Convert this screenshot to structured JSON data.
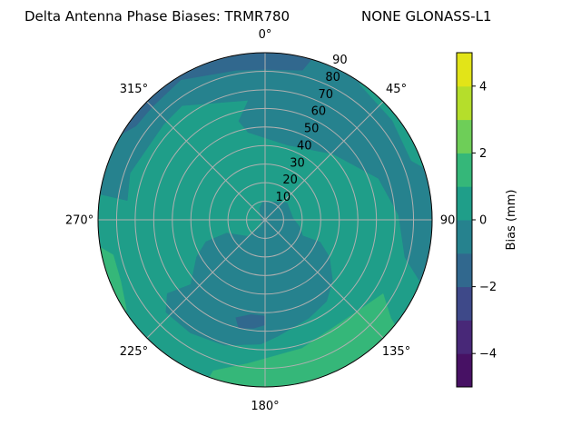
{
  "chart_data": {
    "type": "polar-contour",
    "title_left": "Delta Antenna Phase Biases: TRMR780",
    "title_right": "NONE GLONASS-L1",
    "azimuth_direction": "clockwise, 0° at top",
    "azimuth_ticks": [
      "0°",
      "45°",
      "90°",
      "135°",
      "180°",
      "225°",
      "270°",
      "315°"
    ],
    "radial_ticks": [
      "10",
      "20",
      "30",
      "40",
      "50",
      "60",
      "70",
      "80",
      "90"
    ],
    "radial_range": [
      0,
      90
    ],
    "grid": true,
    "grid_color": "#b0b0b0",
    "colorbar": {
      "label": "Bias (mm)",
      "range": [
        -5,
        5
      ],
      "levels": [
        -5,
        -4,
        -3,
        -2,
        -1,
        0,
        1,
        2,
        3,
        4,
        5
      ],
      "colors": [
        "#471164",
        "#482878",
        "#3e4989",
        "#31688e",
        "#26828e",
        "#1f9e89",
        "#35b779",
        "#6ece58",
        "#b5de2b",
        "#e2e418"
      ],
      "ticks": [
        "4",
        "2",
        "0",
        "−2",
        "−4"
      ],
      "tick_values": [
        4,
        2,
        0,
        -2,
        -4
      ]
    },
    "background_level": [
      0,
      1
    ],
    "regions": [
      {
        "name": "north-east band",
        "range": [
          -1,
          0
        ],
        "points": [
          [
            114,
            95
          ],
          [
            90,
            95
          ],
          [
            60,
            95
          ],
          [
            30,
            95
          ],
          [
            0,
            95
          ],
          [
            330,
            95
          ],
          [
            300,
            95
          ],
          [
            279,
            95
          ],
          [
            278,
            75
          ],
          [
            289,
            77
          ],
          [
            313,
            75
          ],
          [
            324,
            76
          ],
          [
            352,
            65
          ],
          [
            345,
            55
          ],
          [
            349,
            48
          ],
          [
            16.5,
            42
          ],
          [
            46,
            51
          ],
          [
            70,
            65
          ],
          [
            88,
            72
          ],
          [
            105,
            78
          ]
        ]
      },
      {
        "name": "north-east rim strip",
        "range": [
          0,
          1
        ],
        "points": [
          [
            33,
            95
          ],
          [
            50,
            95
          ],
          [
            75,
            95
          ],
          [
            68,
            85
          ],
          [
            52,
            87
          ],
          [
            35,
            89
          ]
        ]
      },
      {
        "name": "north rim band",
        "range": [
          -2,
          -1
        ],
        "points": [
          [
            296,
            95
          ],
          [
            315,
            95
          ],
          [
            340,
            95
          ],
          [
            0,
            95
          ],
          [
            17.5,
            95
          ],
          [
            14,
            83
          ],
          [
            0,
            81
          ],
          [
            349,
            82
          ],
          [
            329,
            88
          ],
          [
            315,
            86
          ],
          [
            306,
            86
          ]
        ]
      },
      {
        "name": "south blob",
        "range": [
          -1,
          0
        ],
        "points": [
          [
            353.6,
            10
          ],
          [
            52,
            15
          ],
          [
            86,
            15
          ],
          [
            101.5,
            19
          ],
          [
            113,
            22
          ],
          [
            112,
            32
          ],
          [
            120,
            40
          ],
          [
            132,
            49
          ],
          [
            143,
            55
          ],
          [
            156,
            58
          ],
          [
            173.6,
            63
          ],
          [
            182,
            67
          ],
          [
            198,
            71
          ],
          [
            213.5,
            73
          ],
          [
            227,
            73
          ],
          [
            233,
            66
          ],
          [
            229,
            53
          ],
          [
            241.5,
            42
          ],
          [
            249.7,
            34
          ],
          [
            251,
            22
          ],
          [
            227,
            13
          ],
          [
            207.5,
            4
          ],
          [
            335,
            7
          ]
        ]
      },
      {
        "name": "south patch",
        "range": [
          -2,
          -1
        ],
        "points": [
          [
            196.7,
            55
          ],
          [
            188.5,
            51.6
          ],
          [
            180.4,
            51.8
          ],
          [
            180.3,
            56.7
          ],
          [
            186,
            58.7
          ],
          [
            193.7,
            60
          ]
        ]
      },
      {
        "name": "south-east crescent",
        "range": [
          1,
          2
        ],
        "points": [
          [
            199,
            86
          ],
          [
            187,
            78
          ],
          [
            164,
            72
          ],
          [
            140,
            69
          ],
          [
            122,
            75
          ],
          [
            128,
            86
          ],
          [
            130,
            95
          ],
          [
            160,
            95
          ],
          [
            180,
            95
          ],
          [
            200,
            95
          ]
        ]
      },
      {
        "name": "west rim patch",
        "range": [
          1,
          2
        ],
        "points": [
          [
            263,
            95
          ],
          [
            257,
            84
          ],
          [
            247,
            84.5
          ],
          [
            237,
            89
          ],
          [
            237,
            95
          ],
          [
            250,
            95
          ]
        ]
      }
    ]
  }
}
